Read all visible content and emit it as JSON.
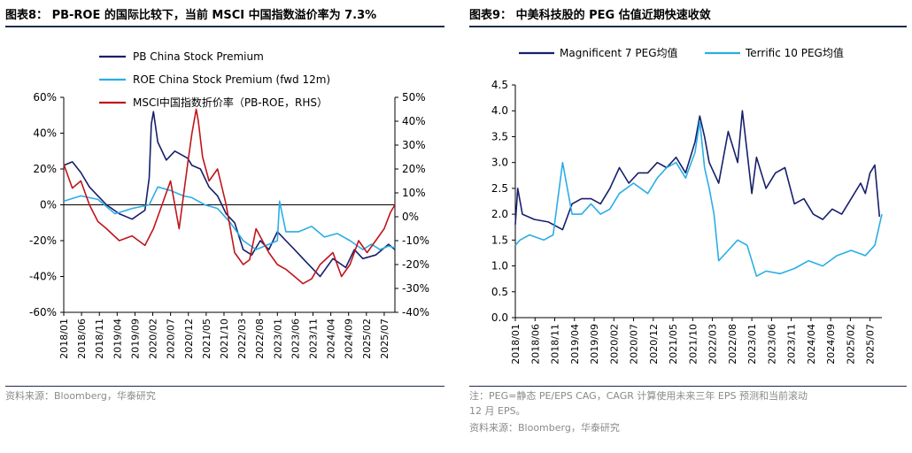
{
  "left_panel": {
    "figure_title": "图表8：   PB-ROE 的国际比较下，当前 MSCI 中国指数溢价率为 7.3%",
    "source": "资料来源：Bloomberg，华泰研究"
  },
  "right_panel": {
    "figure_title": "图表9：   中美科技股的 PEG 估值近期快速收敛",
    "note_line1": "注：PEG=静态 PE/EPS CAG，CAGR 计算使用未来三年 EPS 预测和当前滚动",
    "note_line2": "12 月 EPS。",
    "source": "资料来源：Bloomberg，华泰研究"
  },
  "colors": {
    "navy": "#16206b",
    "cyan": "#2aaee6",
    "red": "#c0151b"
  },
  "chart_data": [
    {
      "type": "line",
      "title": "",
      "x_tick_labels": [
        "2018/01",
        "2018/06",
        "2018/11",
        "2019/04",
        "2019/09",
        "2020/02",
        "2020/07",
        "2020/12",
        "2021/05",
        "2021/10",
        "2022/03",
        "2022/08",
        "2023/01",
        "2023/06",
        "2023/11",
        "2024/04",
        "2024/09",
        "2025/02",
        "2025/07"
      ],
      "x_range": [
        2018.0,
        2025.75
      ],
      "y_left": {
        "ticks": [
          "60%",
          "40%",
          "20%",
          "0%",
          "-20%",
          "-40%",
          "-60%"
        ],
        "range": [
          -60,
          60
        ]
      },
      "y_right": {
        "label": "RHS",
        "ticks": [
          "50%",
          "40%",
          "30%",
          "20%",
          "10%",
          "0%",
          "-10%",
          "-20%",
          "-30%",
          "-40%"
        ],
        "range": [
          -40,
          50
        ]
      },
      "legend_position": "top",
      "grid": false,
      "series": [
        {
          "name": "PB China Stock Premium",
          "color": "#16206b",
          "axis": "left",
          "x": [
            2018.0,
            2018.2,
            2018.4,
            2018.6,
            2018.8,
            2019.0,
            2019.3,
            2019.6,
            2019.9,
            2020.0,
            2020.05,
            2020.1,
            2020.2,
            2020.4,
            2020.6,
            2020.9,
            2021.0,
            2021.2,
            2021.4,
            2021.6,
            2021.8,
            2022.0,
            2022.2,
            2022.4,
            2022.6,
            2022.8,
            2023.0,
            2023.2,
            2023.4,
            2023.6,
            2023.8,
            2024.0,
            2024.3,
            2024.6,
            2024.8,
            2025.0,
            2025.3,
            2025.6,
            2025.75
          ],
          "y": [
            22,
            24,
            18,
            10,
            5,
            0,
            -5,
            -8,
            -3,
            15,
            45,
            52,
            35,
            25,
            30,
            26,
            22,
            20,
            10,
            5,
            -5,
            -10,
            -25,
            -28,
            -20,
            -25,
            -15,
            -20,
            -25,
            -30,
            -35,
            -40,
            -30,
            -35,
            -25,
            -30,
            -28,
            -22,
            -25
          ]
        },
        {
          "name": "ROE China Stock Premium (fwd 12m)",
          "color": "#2aaee6",
          "axis": "left",
          "x": [
            2018.0,
            2018.4,
            2018.8,
            2019.2,
            2019.6,
            2020.0,
            2020.2,
            2020.5,
            2020.8,
            2021.0,
            2021.3,
            2021.6,
            2021.9,
            2022.2,
            2022.5,
            2022.8,
            2023.0,
            2023.05,
            2023.2,
            2023.5,
            2023.8,
            2024.1,
            2024.4,
            2024.7,
            2025.0,
            2025.2,
            2025.4,
            2025.6,
            2025.75
          ],
          "y": [
            2,
            5,
            3,
            -5,
            -2,
            0,
            10,
            8,
            5,
            4,
            0,
            -2,
            -10,
            -20,
            -25,
            -22,
            -20,
            2,
            -15,
            -15,
            -12,
            -18,
            -16,
            -20,
            -25,
            -22,
            -25,
            -23,
            -24
          ]
        },
        {
          "name": "MSCI中国指数折价率（PB-ROE，RHS）",
          "color": "#c0151b",
          "axis": "right",
          "x": [
            2018.0,
            2018.2,
            2018.4,
            2018.6,
            2018.8,
            2019.0,
            2019.3,
            2019.6,
            2019.9,
            2020.1,
            2020.3,
            2020.5,
            2020.7,
            2020.9,
            2021.0,
            2021.1,
            2021.15,
            2021.25,
            2021.4,
            2021.6,
            2021.8,
            2022.0,
            2022.2,
            2022.35,
            2022.5,
            2022.65,
            2022.8,
            2023.0,
            2023.2,
            2023.4,
            2023.6,
            2023.8,
            2024.0,
            2024.3,
            2024.5,
            2024.7,
            2024.9,
            2025.1,
            2025.3,
            2025.5,
            2025.65,
            2025.75
          ],
          "y": [
            22,
            12,
            15,
            5,
            -2,
            -5,
            -10,
            -8,
            -12,
            -5,
            5,
            15,
            -5,
            22,
            35,
            45,
            40,
            25,
            15,
            20,
            5,
            -15,
            -20,
            -18,
            -5,
            -10,
            -15,
            -20,
            -22,
            -25,
            -28,
            -26,
            -20,
            -15,
            -25,
            -20,
            -10,
            -15,
            -10,
            -5,
            2,
            5
          ]
        }
      ]
    },
    {
      "type": "line",
      "title": "",
      "x_tick_labels": [
        "2018/01",
        "2018/06",
        "2018/11",
        "2019/04",
        "2019/09",
        "2020/02",
        "2020/07",
        "2020/12",
        "2021/05",
        "2021/10",
        "2022/03",
        "2022/08",
        "2023/01",
        "2023/06",
        "2023/11",
        "2024/04",
        "2024/09",
        "2025/02",
        "2025/07"
      ],
      "x_range": [
        2018.0,
        2025.75
      ],
      "y_ticks": [
        "4.5",
        "4.0",
        "3.5",
        "3.0",
        "2.5",
        "2.0",
        "1.5",
        "1.0",
        "0.5",
        "0.0"
      ],
      "y_range": [
        0,
        4.5
      ],
      "legend_position": "top",
      "grid": false,
      "series": [
        {
          "name": "Magnificent 7 PEG均值",
          "color": "#16206b",
          "x": [
            2018.0,
            2018.05,
            2018.15,
            2018.4,
            2018.7,
            2019.0,
            2019.2,
            2019.4,
            2019.6,
            2019.8,
            2020.0,
            2020.2,
            2020.4,
            2020.6,
            2020.8,
            2021.0,
            2021.2,
            2021.4,
            2021.6,
            2021.8,
            2021.9,
            2022.0,
            2022.1,
            2022.3,
            2022.5,
            2022.7,
            2022.8,
            2022.9,
            2023.0,
            2023.1,
            2023.3,
            2023.5,
            2023.7,
            2023.9,
            2024.1,
            2024.3,
            2024.5,
            2024.7,
            2024.9,
            2025.1,
            2025.3,
            2025.4,
            2025.5,
            2025.6,
            2025.7
          ],
          "y": [
            1.8,
            2.5,
            2.0,
            1.9,
            1.85,
            1.7,
            2.2,
            2.3,
            2.3,
            2.2,
            2.5,
            2.9,
            2.6,
            2.8,
            2.8,
            3.0,
            2.9,
            3.1,
            2.8,
            3.4,
            3.9,
            3.5,
            3.0,
            2.6,
            3.6,
            3.0,
            4.0,
            3.2,
            2.4,
            3.1,
            2.5,
            2.8,
            2.9,
            2.2,
            2.3,
            2.0,
            1.9,
            2.1,
            2.0,
            2.3,
            2.6,
            2.4,
            2.8,
            2.95,
            1.95
          ]
        },
        {
          "name": "Terrific 10 PEG均值",
          "color": "#2aaee6",
          "x": [
            2018.0,
            2018.1,
            2018.3,
            2018.6,
            2018.8,
            2019.0,
            2019.2,
            2019.4,
            2019.6,
            2019.8,
            2020.0,
            2020.2,
            2020.5,
            2020.8,
            2021.0,
            2021.2,
            2021.4,
            2021.6,
            2021.8,
            2021.9,
            2022.0,
            2022.1,
            2022.2,
            2022.3,
            2022.5,
            2022.7,
            2022.9,
            2023.1,
            2023.3,
            2023.6,
            2023.9,
            2024.2,
            2024.5,
            2024.8,
            2025.1,
            2025.4,
            2025.6,
            2025.75
          ],
          "y": [
            1.4,
            1.5,
            1.6,
            1.5,
            1.6,
            3.0,
            2.0,
            2.0,
            2.2,
            2.0,
            2.1,
            2.4,
            2.6,
            2.4,
            2.7,
            2.9,
            3.0,
            2.7,
            3.2,
            3.8,
            2.9,
            2.5,
            2.0,
            1.1,
            1.3,
            1.5,
            1.4,
            0.8,
            0.9,
            0.85,
            0.95,
            1.1,
            1.0,
            1.2,
            1.3,
            1.2,
            1.4,
            2.0
          ]
        }
      ]
    }
  ]
}
